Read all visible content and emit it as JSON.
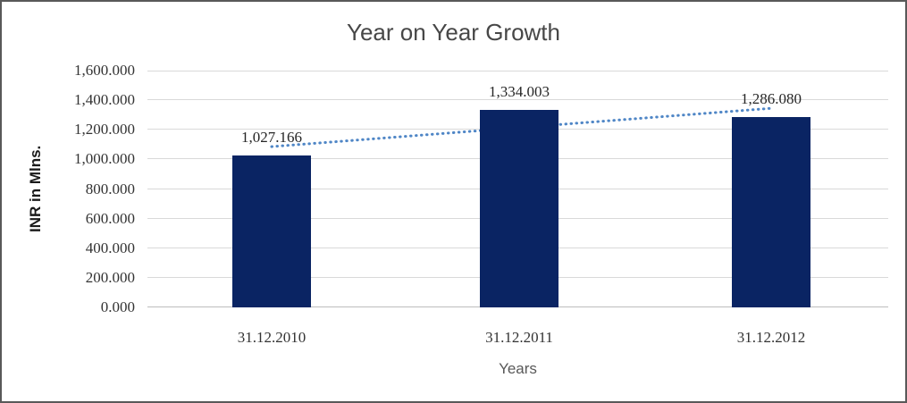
{
  "chart_data": {
    "type": "bar",
    "title": "Year on Year Growth",
    "categories": [
      "31.12.2010",
      "31.12.2011",
      "31.12.2012"
    ],
    "values": [
      1027.166,
      1334.003,
      1286.08
    ],
    "data_labels": [
      "1,027.166",
      "1,334.003",
      "1,286.080"
    ],
    "xlabel": "Years",
    "ylabel": "INR in Mlns.",
    "ylim": [
      0,
      1600
    ],
    "ytick_step": 200,
    "ytick_labels": [
      "0.000",
      "200.000",
      "400.000",
      "600.000",
      "800.000",
      "1,000.000",
      "1,200.000",
      "1,400.000",
      "1,600.000"
    ],
    "grid": true,
    "legend": "none",
    "bar_color": "#0A2463",
    "trendline": {
      "type": "linear",
      "style": "dotted",
      "color": "#4F86C6",
      "start_value": 1086.3,
      "end_value": 1345.2
    }
  }
}
